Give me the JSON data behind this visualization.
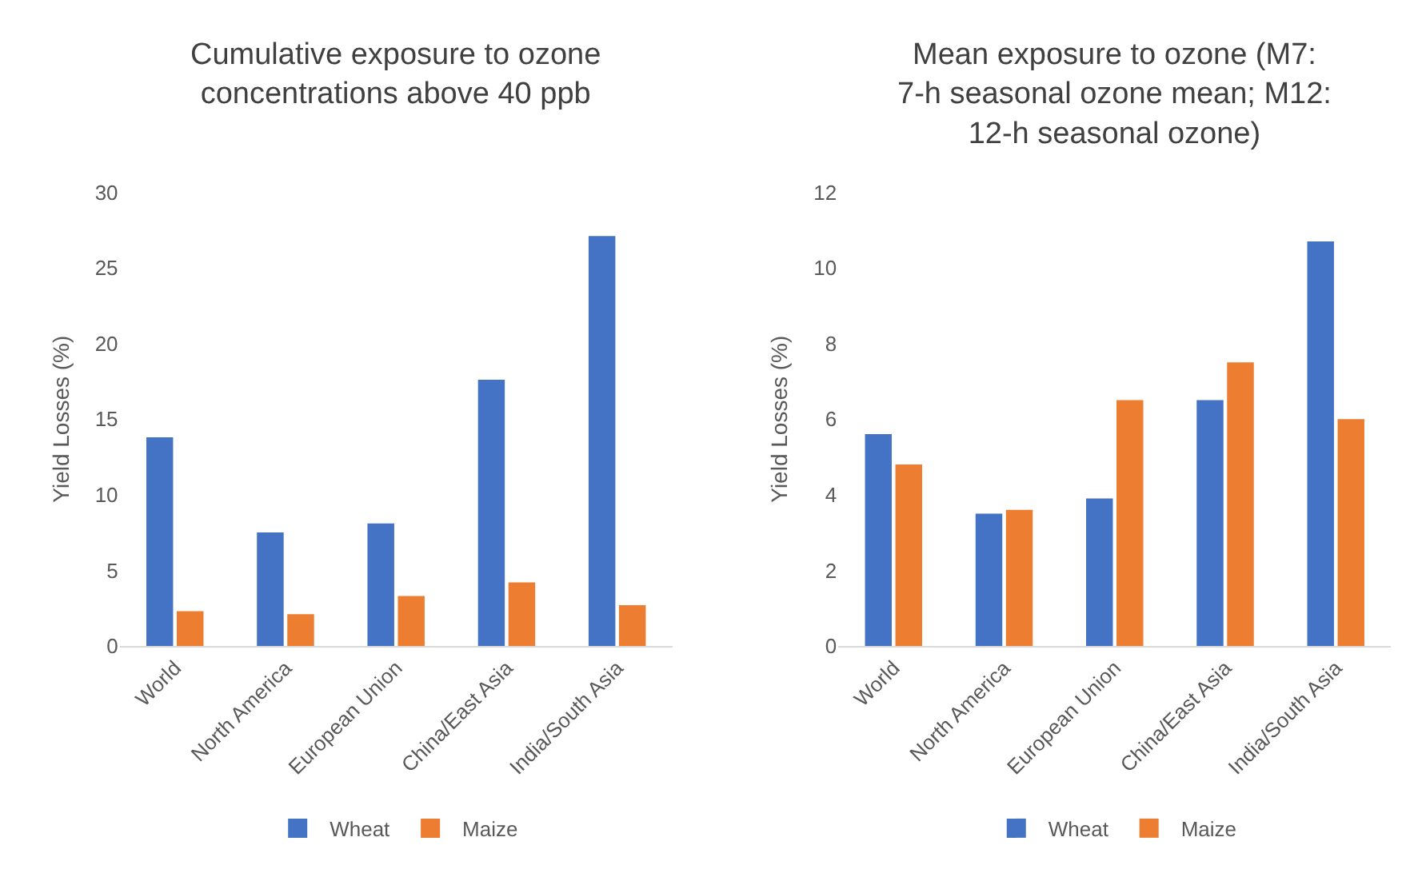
{
  "chart_data": [
    {
      "type": "bar",
      "title": "Cumulative exposure to ozone concentrations above 40 ppb",
      "ylabel": "Yield Losses (%)",
      "categories": [
        "World",
        "North America",
        "European Union",
        "China/East Asia",
        "India/South Asia"
      ],
      "series": [
        {
          "name": "Wheat",
          "color": "#4472c4",
          "values": [
            13.8,
            7.5,
            8.1,
            17.6,
            27.1
          ]
        },
        {
          "name": "Maize",
          "color": "#ed7d31",
          "values": [
            2.3,
            2.1,
            3.3,
            4.2,
            2.7
          ]
        }
      ],
      "ylim": [
        0,
        30
      ],
      "yticks": [
        0,
        5,
        10,
        15,
        20,
        25,
        30
      ],
      "grid": false,
      "legend": "bottom"
    },
    {
      "type": "bar",
      "title": "Mean exposure to ozone (M7: 7-h seasonal ozone mean; M12: 12-h seasonal ozone)",
      "ylabel": "Yield Losses (%)",
      "categories": [
        "World",
        "North America",
        "European Union",
        "China/East Asia",
        "India/South Asia"
      ],
      "series": [
        {
          "name": "Wheat",
          "color": "#4472c4",
          "values": [
            5.6,
            3.5,
            3.9,
            6.5,
            10.7
          ]
        },
        {
          "name": "Maize",
          "color": "#ed7d31",
          "values": [
            4.8,
            3.6,
            6.5,
            7.5,
            6.0
          ]
        }
      ],
      "ylim": [
        0,
        12
      ],
      "yticks": [
        0,
        2,
        4,
        6,
        8,
        10,
        12
      ],
      "grid": false,
      "legend": "bottom"
    }
  ]
}
